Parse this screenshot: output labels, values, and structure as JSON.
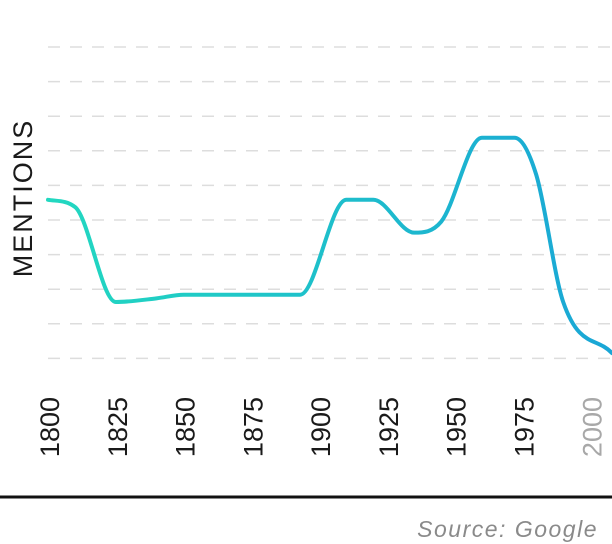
{
  "chart_data": {
    "type": "line",
    "title": "",
    "ylabel": "MENTIONS",
    "xlabel": "",
    "x_ticks": [
      1800,
      1825,
      1850,
      1875,
      1900,
      1925,
      1950,
      1975,
      2000
    ],
    "faded_ticks": [
      2000
    ],
    "xlim": [
      1800,
      2008
    ],
    "ylim": [
      0,
      10
    ],
    "grid": "horizontal dashed",
    "series": [
      {
        "x": [
          1800,
          1810,
          1825,
          1840,
          1850,
          1875,
          1893,
          1910,
          1920,
          1935,
          1945,
          1960,
          1972,
          1980,
          1990,
          2008
        ],
        "y": [
          4.8,
          4.6,
          2.0,
          2.1,
          2.2,
          2.2,
          2.2,
          4.8,
          4.8,
          3.9,
          4.2,
          6.5,
          6.5,
          5.5,
          2.0,
          0.6
        ]
      }
    ],
    "gradient": [
      "#22d8c0",
      "#1aa6d6"
    ],
    "source": "Source: Google"
  }
}
